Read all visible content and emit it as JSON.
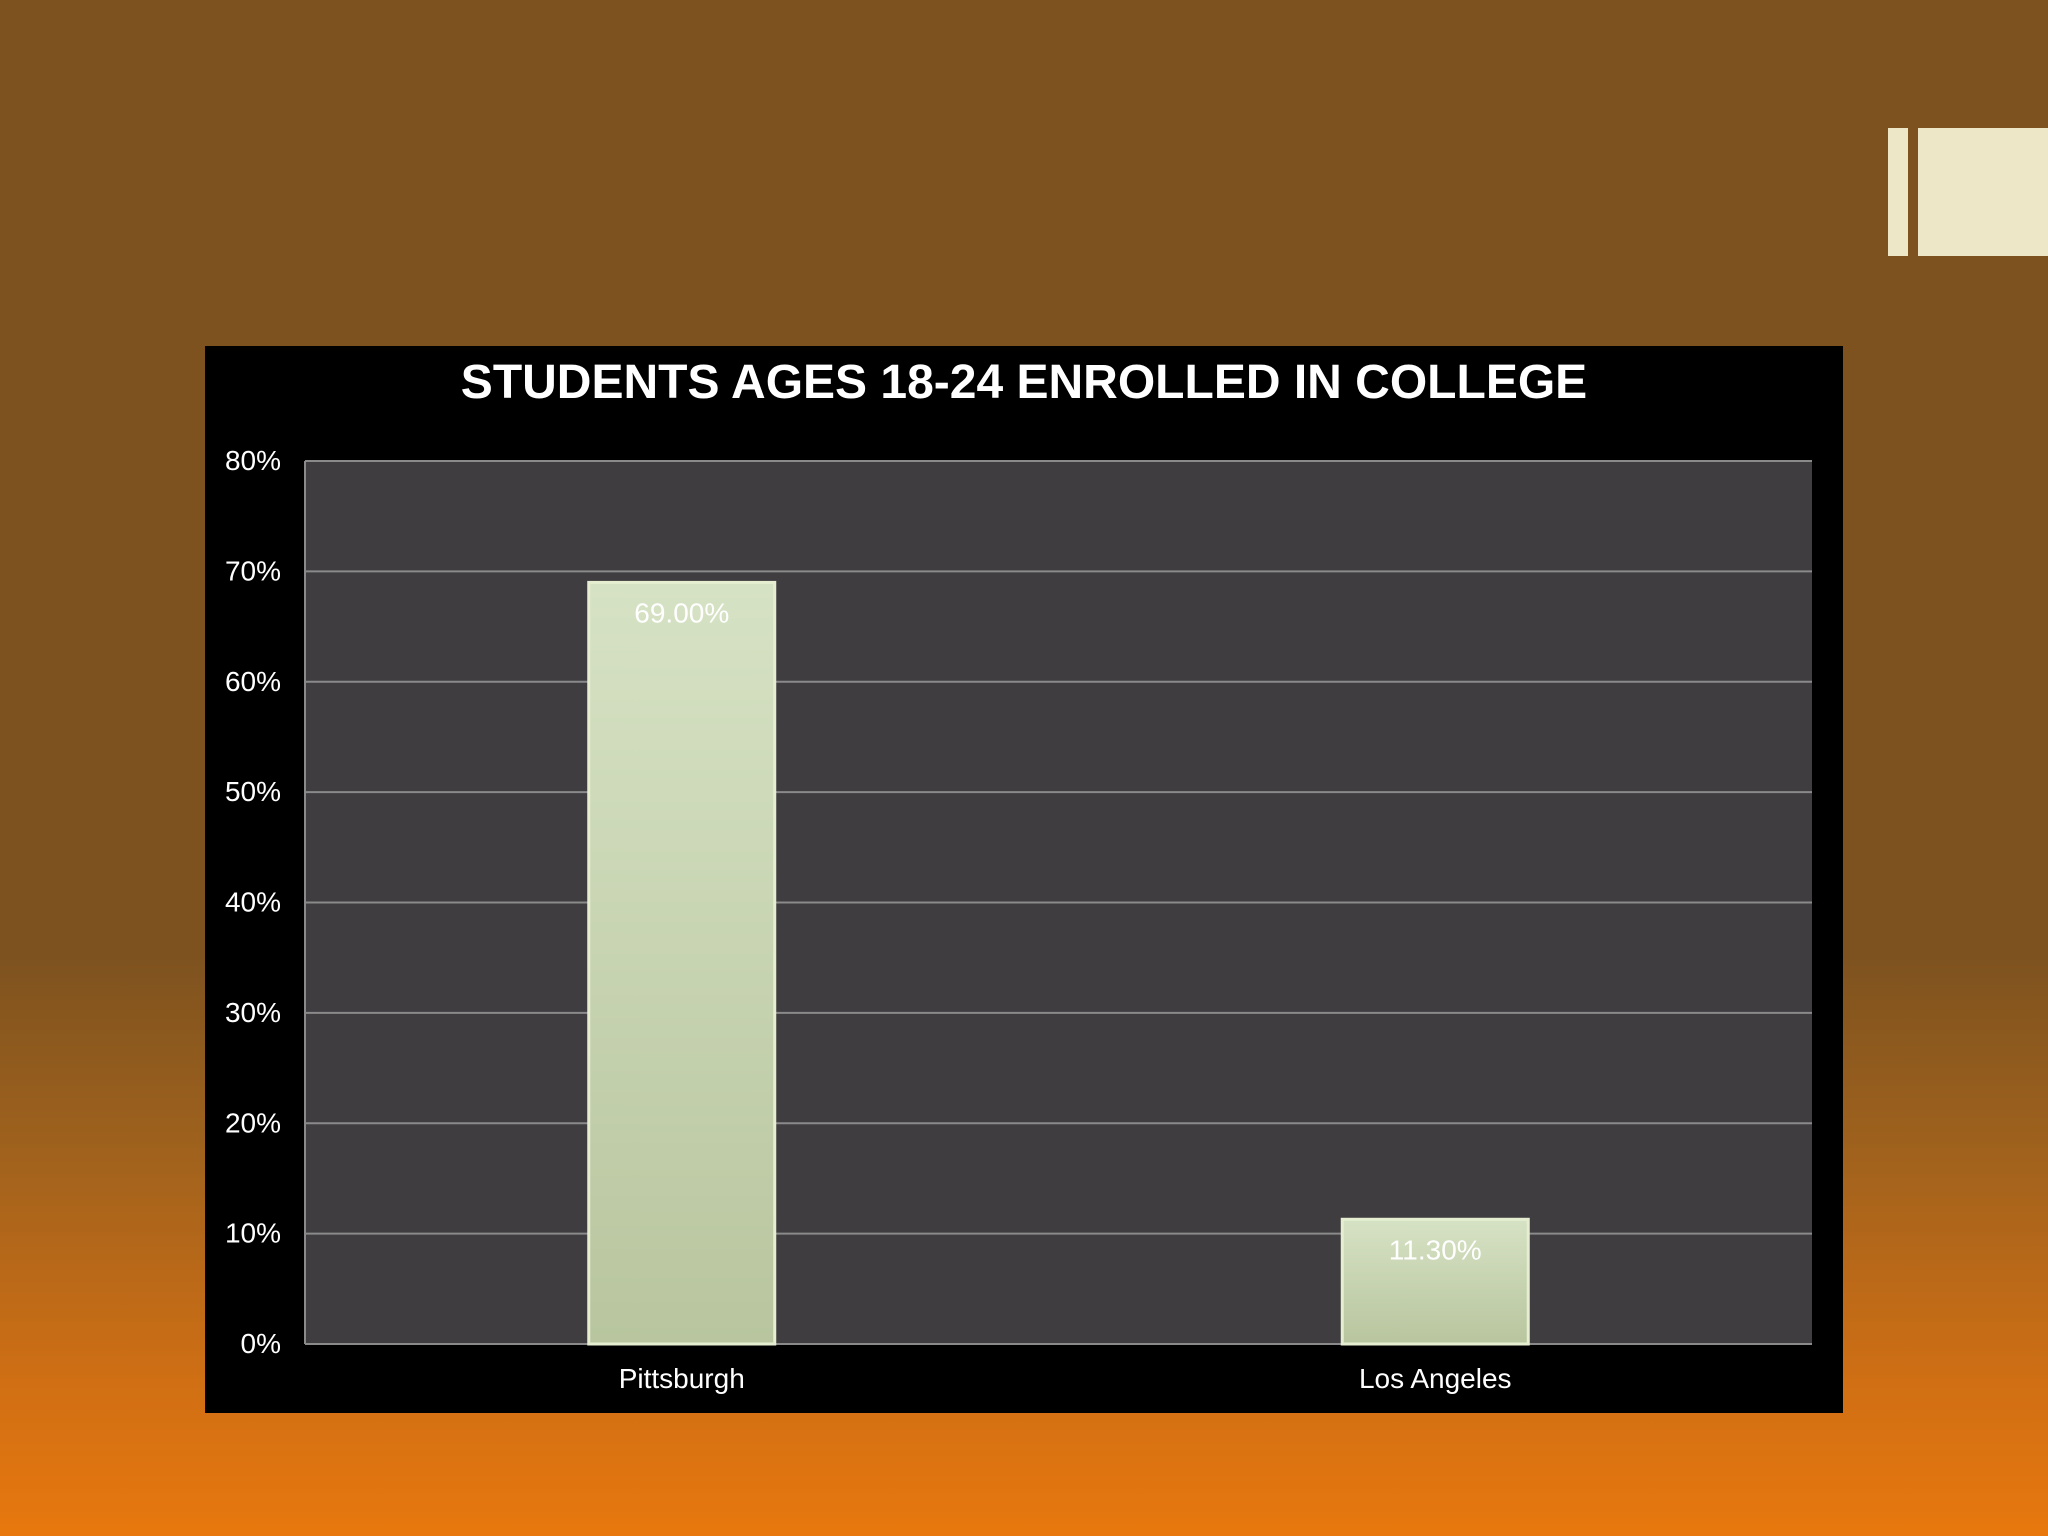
{
  "chart_data": {
    "type": "bar",
    "title": "STUDENTS AGES 18-24 ENROLLED IN COLLEGE",
    "categories": [
      "Pittsburgh",
      "Los Angeles"
    ],
    "values": [
      69.0,
      11.3
    ],
    "data_labels": [
      "69.00%",
      "11.30%"
    ],
    "ylim": [
      0,
      80
    ],
    "yticks": [
      0,
      10,
      20,
      30,
      40,
      50,
      60,
      70,
      80
    ],
    "ytick_labels": [
      "0%",
      "10%",
      "20%",
      "30%",
      "40%",
      "50%",
      "60%",
      "70%",
      "80%"
    ],
    "xlabel": "",
    "ylabel": "",
    "grid": true,
    "legend": "none",
    "colors": {
      "plot_background": "#3f3d40",
      "panel_background": "#000000",
      "bar_fill": "#c9d6b6",
      "gridline": "#8a8a8a",
      "text": "#ffffff"
    }
  }
}
